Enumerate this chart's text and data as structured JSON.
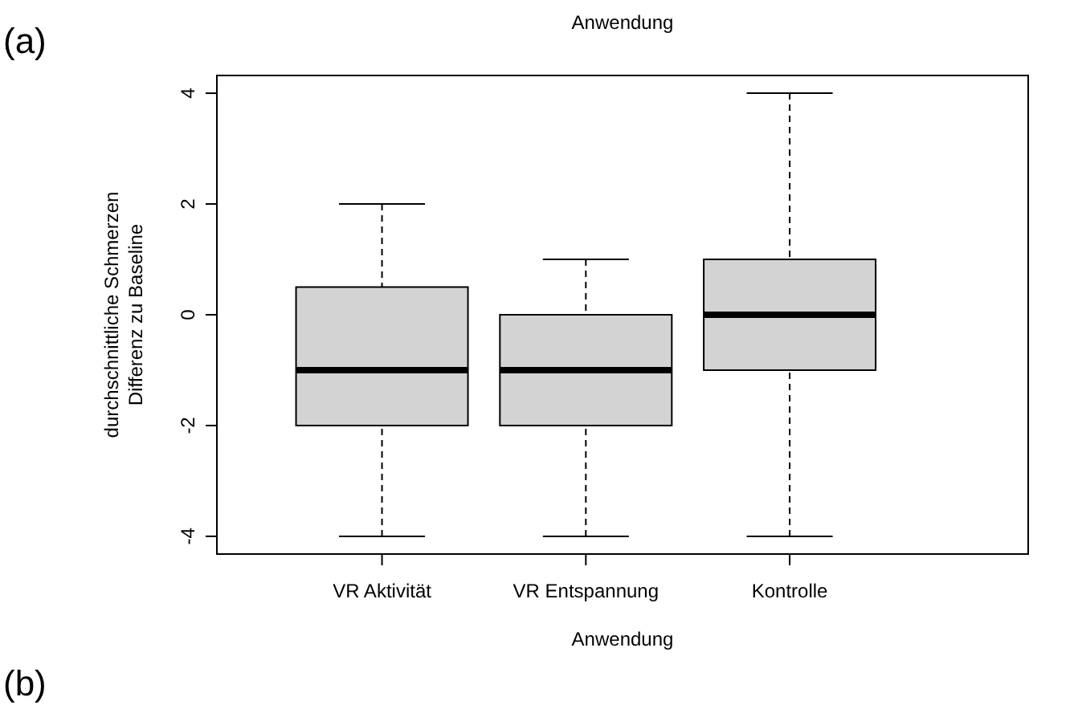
{
  "chart_data": {
    "type": "box",
    "title": "Anwendung",
    "xlabel": "Anwendung",
    "ylabel": "durchschnittliche Schmerzen\nDifferenz zu Baseline",
    "categories": [
      "VR Aktivität",
      "VR Entspannung",
      "Kontrolle"
    ],
    "boxes": [
      {
        "low": -4,
        "q1": -2,
        "median": -1,
        "q3": 0.5,
        "high": 2
      },
      {
        "low": -4,
        "q1": -2,
        "median": -1,
        "q3": 0,
        "high": 1
      },
      {
        "low": -4,
        "q1": -1,
        "median": 0,
        "q3": 1,
        "high": 4
      }
    ],
    "color": "#d3d3d3",
    "ylim": [
      -4.32,
      4.32
    ],
    "yticks": [
      -4,
      -2,
      0,
      2,
      4
    ],
    "grid": false,
    "annotations": [
      "(a)",
      "(b)"
    ]
  }
}
